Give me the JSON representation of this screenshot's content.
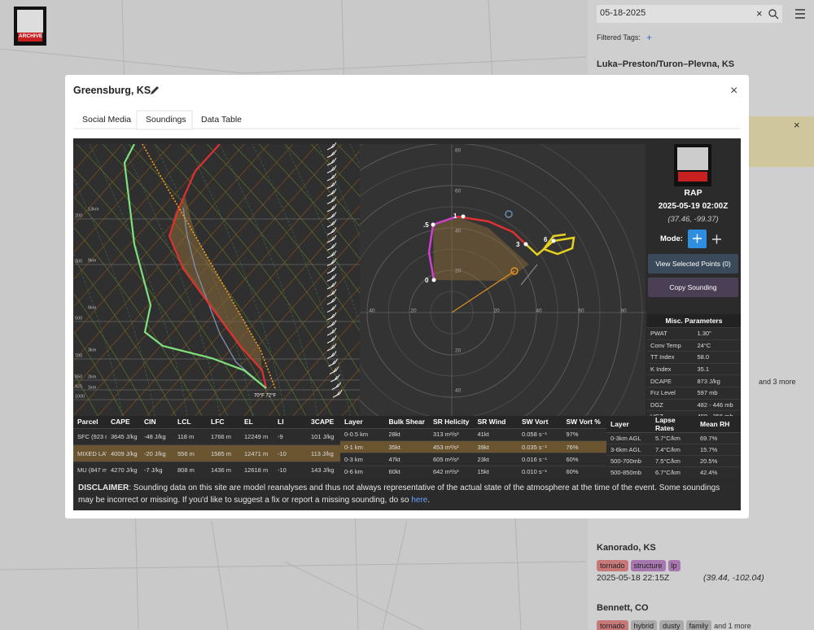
{
  "logo": {
    "text": "ARCHIVE"
  },
  "sidebar": {
    "search": "05-18-2025",
    "clear": "×",
    "filtered_tags": "Filtered Tags:",
    "add_tag": "+",
    "first_event": "Luka–Preston/Turon–Plevna, KS",
    "notice_close": "×",
    "more_fragment": "and 3 more",
    "events": [
      {
        "name": "Kanorado, KS",
        "tags": [
          "tornado",
          "structure",
          "lp"
        ],
        "time": "2025-05-18 22:15Z",
        "coords": "(39.44, -102.04)"
      },
      {
        "name": "Bennett, CO",
        "tags": [
          "tornado",
          "hybrid",
          "dusty",
          "family"
        ],
        "more": "and 1 more"
      }
    ]
  },
  "modal": {
    "title": "Greensburg, KS",
    "close": "×",
    "tabs": [
      "Social Media",
      "Soundings",
      "Data Table"
    ]
  },
  "skewt": {
    "pressure_labels": [
      "200",
      "300",
      "500",
      "700",
      "850",
      "925",
      "1000"
    ],
    "height_labels": [
      "13km",
      "9km",
      "6km",
      "3km",
      "2km",
      "1km"
    ],
    "surface_label": "70°F 72°F"
  },
  "hodograph": {
    "x_labels": [
      "40",
      "20",
      "20",
      "40",
      "60",
      "80"
    ],
    "y_labels": [
      "80",
      "60",
      "40",
      "20",
      "20",
      "40"
    ],
    "point_labels": [
      "0",
      ".5",
      "1",
      "3",
      "6"
    ]
  },
  "info": {
    "model": "RAP",
    "time": "2025-05-19 02:00Z",
    "coords": "(37.46, -99.37)",
    "mode_label": "Mode:",
    "view_button": "View Selected Points (0)",
    "copy_button": "Copy Sounding",
    "misc_title": "Misc. Parameters",
    "misc_rows": [
      [
        "PWAT",
        "1.30\""
      ],
      [
        "Conv Temp",
        "24°C"
      ],
      [
        "TT Index",
        "58.0"
      ],
      [
        "K Index",
        "35.1"
      ],
      [
        "DCAPE",
        "873 J/kg"
      ],
      [
        "Frz Level",
        "597 mb"
      ],
      [
        "DGZ",
        "482 - 446 mb"
      ],
      [
        "HGZ",
        "498 - 356 mb"
      ]
    ]
  },
  "tables": {
    "parcel": {
      "header": [
        "Parcel",
        "CAPE",
        "CIN",
        "LCL",
        "LFC",
        "EL",
        "LI",
        "3CAPE"
      ],
      "rows": [
        [
          "SFC (923 mb)",
          "3645 J/kg",
          "-48 J/kg",
          "118 m",
          "1766 m",
          "12249 m",
          "-9",
          "101 J/kg"
        ],
        [
          "MIXED LAYER",
          "4009 J/kg",
          "-20 J/kg",
          "556 m",
          "1585 m",
          "12471 m",
          "-10",
          "113 J/kg"
        ],
        [
          "MU (847 mb)",
          "4270 J/kg",
          "-7 J/kg",
          "808 m",
          "1436 m",
          "12618 m",
          "-10",
          "143 J/kg"
        ]
      ]
    },
    "layer": {
      "header": [
        "Layer",
        "Bulk Shear",
        "SR Helicity",
        "SR Wind",
        "SW Vort",
        "SW Vort %"
      ],
      "rows": [
        [
          "0-0.5 km",
          "28kt",
          "313 m²/s²",
          "41kt",
          "0.058 s⁻¹",
          "97%"
        ],
        [
          "0-1 km",
          "35kt",
          "453 m²/s²",
          "39kt",
          "0.035 s⁻¹",
          "76%"
        ],
        [
          "0-3 km",
          "47kt",
          "605 m²/s²",
          "23kt",
          "0.016 s⁻¹",
          "60%"
        ],
        [
          "0-6 km",
          "60kt",
          "642 m²/s²",
          "15kt",
          "0.010 s⁻¹",
          "60%"
        ]
      ]
    },
    "lapse": {
      "header": [
        "Layer",
        "Lapse Rates",
        "Mean RH"
      ],
      "rows": [
        [
          "0-3km AGL",
          "5.7°C/km",
          "69.7%"
        ],
        [
          "3-6km AGL",
          "7.4°C/km",
          "15.7%"
        ],
        [
          "500-700mb",
          "7.5°C/km",
          "20.5%"
        ],
        [
          "500-850mb",
          "6.7°C/km",
          "42.4%"
        ]
      ]
    }
  },
  "disclaimer": {
    "label": "DISCLAIMER",
    "text": ": Sounding data on this site are model reanalyses and thus not always representative of the actual state of the atmosphere at the time of the event. Some soundings may be incorrect or missing. If you'd like to suggest a fix or report a missing sounding, do so ",
    "link": "here",
    "end": "."
  }
}
